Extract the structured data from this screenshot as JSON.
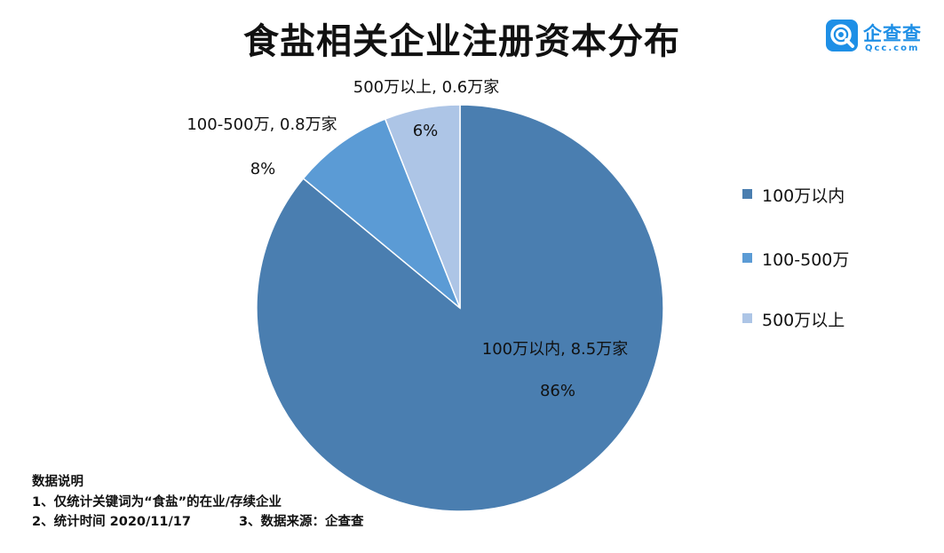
{
  "header": {
    "title": "食盐相关企业注册资本分布"
  },
  "brand": {
    "name": "企查查",
    "url": "Qcc.com",
    "color": "#1e8fe6",
    "icon": "qcc-logo-icon"
  },
  "chart_data": {
    "type": "pie",
    "title": "食盐相关企业注册资本分布",
    "slices": [
      {
        "name": "100万以内",
        "value": 8.5,
        "percent": 86,
        "label": "100万以内, 8.5万家",
        "percent_label": "86%",
        "color": "#4a7eb0"
      },
      {
        "name": "100-500万",
        "value": 0.8,
        "percent": 8,
        "label": "100-500万, 0.8万家",
        "percent_label": "8%",
        "color": "#5b9bd5"
      },
      {
        "name": "500万以上",
        "value": 0.6,
        "percent": 6,
        "label": "500万以上, 0.6万家",
        "percent_label": "6%",
        "color": "#adc5e6"
      }
    ],
    "start_angle": "12 o'clock",
    "direction": "clockwise",
    "legend_position": "right"
  },
  "notes": {
    "heading": "数据说明",
    "line1": "1、仅统计关键词为“食盐”的在业/存续企业",
    "line2a": "2、统计时间 2020/11/17",
    "line2b": "3、数据来源：企查查"
  }
}
